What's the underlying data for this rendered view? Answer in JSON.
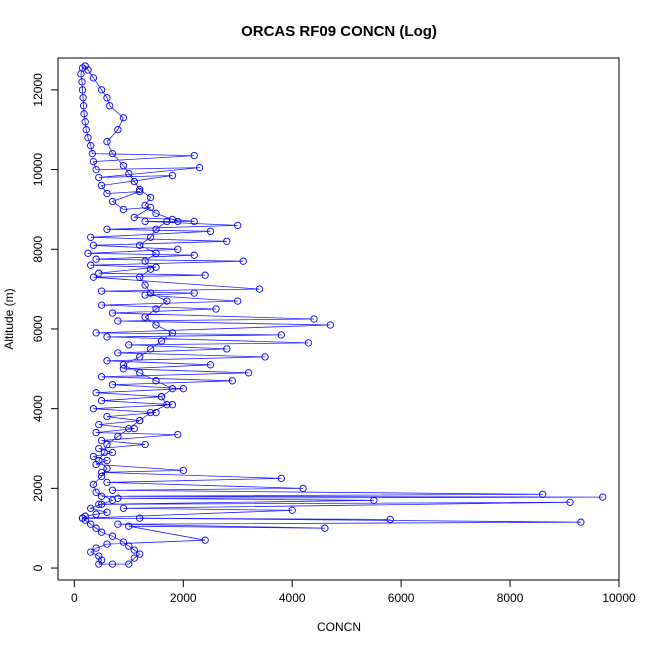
{
  "chart_data": {
    "type": "scatter",
    "title": "ORCAS RF09 CONCN (Log)",
    "xlabel": "CONCN",
    "ylabel": "Altitude (m)",
    "xlim": [
      -300,
      10000
    ],
    "ylim": [
      -300,
      12800
    ],
    "xticks": [
      0,
      2000,
      4000,
      6000,
      8000,
      10000
    ],
    "yticks": [
      0,
      2000,
      4000,
      6000,
      8000,
      10000,
      12000
    ],
    "grid": false,
    "legend": "none",
    "connected": true,
    "marker": "open-circle",
    "colors": {
      "points": "#0000ff",
      "line": "#2020ff"
    },
    "series": [
      {
        "points": [
          [
            200,
            12600
          ],
          [
            150,
            12550
          ],
          [
            120,
            12400
          ],
          [
            140,
            12200
          ],
          [
            150,
            12000
          ],
          [
            160,
            11800
          ],
          [
            170,
            11600
          ],
          [
            180,
            11400
          ],
          [
            200,
            11200
          ],
          [
            220,
            11000
          ],
          [
            250,
            10800
          ],
          [
            300,
            10600
          ],
          [
            330,
            10400
          ],
          [
            2200,
            10350
          ],
          [
            350,
            10200
          ],
          [
            400,
            10000
          ],
          [
            2300,
            10050
          ],
          [
            450,
            9800
          ],
          [
            1800,
            9850
          ],
          [
            500,
            9600
          ],
          [
            600,
            9400
          ],
          [
            1200,
            9450
          ],
          [
            700,
            9200
          ],
          [
            900,
            9000
          ],
          [
            1400,
            9050
          ],
          [
            1100,
            8800
          ],
          [
            1800,
            8750
          ],
          [
            2200,
            8700
          ],
          [
            1300,
            8700
          ],
          [
            3000,
            8600
          ],
          [
            600,
            8500
          ],
          [
            2500,
            8450
          ],
          [
            300,
            8300
          ],
          [
            2800,
            8200
          ],
          [
            350,
            8100
          ],
          [
            1900,
            8000
          ],
          [
            250,
            7900
          ],
          [
            2200,
            7850
          ],
          [
            400,
            7750
          ],
          [
            3100,
            7700
          ],
          [
            300,
            7600
          ],
          [
            1500,
            7550
          ],
          [
            450,
            7400
          ],
          [
            2400,
            7350
          ],
          [
            350,
            7300
          ],
          [
            3400,
            7000
          ],
          [
            500,
            6950
          ],
          [
            2200,
            6900
          ],
          [
            1300,
            6850
          ],
          [
            3000,
            6700
          ],
          [
            500,
            6600
          ],
          [
            2600,
            6500
          ],
          [
            700,
            6400
          ],
          [
            4400,
            6250
          ],
          [
            800,
            6200
          ],
          [
            4700,
            6100
          ],
          [
            400,
            5900
          ],
          [
            3800,
            5850
          ],
          [
            600,
            5800
          ],
          [
            4300,
            5650
          ],
          [
            1000,
            5600
          ],
          [
            2800,
            5500
          ],
          [
            800,
            5400
          ],
          [
            3500,
            5300
          ],
          [
            600,
            5200
          ],
          [
            2500,
            5100
          ],
          [
            900,
            5000
          ],
          [
            3200,
            4900
          ],
          [
            500,
            4800
          ],
          [
            2900,
            4700
          ],
          [
            700,
            4600
          ],
          [
            2000,
            4500
          ],
          [
            400,
            4400
          ],
          [
            1600,
            4300
          ],
          [
            500,
            4200
          ],
          [
            1800,
            4100
          ],
          [
            350,
            4000
          ],
          [
            1500,
            3900
          ],
          [
            600,
            3800
          ],
          [
            1200,
            3700
          ],
          [
            450,
            3600
          ],
          [
            1100,
            3500
          ],
          [
            400,
            3400
          ],
          [
            1900,
            3350
          ],
          [
            500,
            3200
          ],
          [
            1300,
            3100
          ],
          [
            450,
            3000
          ],
          [
            700,
            2900
          ],
          [
            350,
            2800
          ],
          [
            600,
            2700
          ],
          [
            400,
            2600
          ],
          [
            2000,
            2450
          ],
          [
            500,
            2400
          ],
          [
            3800,
            2250
          ],
          [
            600,
            2150
          ],
          [
            4200,
            2000
          ],
          [
            700,
            1950
          ],
          [
            8600,
            1850
          ],
          [
            500,
            1800
          ],
          [
            9700,
            1780
          ],
          [
            800,
            1750
          ],
          [
            5500,
            1700
          ],
          [
            450,
            1600
          ],
          [
            9100,
            1650
          ],
          [
            900,
            1500
          ],
          [
            4000,
            1450
          ],
          [
            150,
            1250
          ],
          [
            5800,
            1220
          ],
          [
            1200,
            1250
          ],
          [
            9300,
            1150
          ],
          [
            800,
            1100
          ],
          [
            4600,
            1000
          ],
          [
            1000,
            1050
          ],
          [
            2400,
            700
          ],
          [
            600,
            600
          ],
          [
            400,
            500
          ],
          [
            300,
            400
          ],
          [
            450,
            300
          ],
          [
            500,
            200
          ],
          [
            450,
            100
          ],
          [
            700,
            100
          ],
          [
            1000,
            100
          ],
          [
            1100,
            250
          ],
          [
            1200,
            350
          ],
          [
            1100,
            450
          ],
          [
            1000,
            550
          ],
          [
            900,
            650
          ],
          [
            700,
            800
          ],
          [
            500,
            900
          ],
          [
            400,
            1000
          ],
          [
            300,
            1100
          ],
          [
            200,
            1200
          ],
          [
            150,
            1250
          ],
          [
            200,
            1300
          ],
          [
            400,
            1350
          ],
          [
            600,
            1400
          ],
          [
            300,
            1500
          ],
          [
            500,
            1600
          ],
          [
            700,
            1700
          ],
          [
            400,
            1900
          ],
          [
            350,
            2100
          ],
          [
            500,
            2300
          ],
          [
            600,
            2500
          ],
          [
            450,
            2700
          ],
          [
            550,
            2900
          ],
          [
            600,
            3100
          ],
          [
            800,
            3300
          ],
          [
            1000,
            3500
          ],
          [
            1200,
            3700
          ],
          [
            1400,
            3900
          ],
          [
            1700,
            4100
          ],
          [
            1600,
            4300
          ],
          [
            1800,
            4500
          ],
          [
            1500,
            4700
          ],
          [
            1200,
            4900
          ],
          [
            900,
            5100
          ],
          [
            1200,
            5300
          ],
          [
            1400,
            5500
          ],
          [
            1600,
            5700
          ],
          [
            1800,
            5900
          ],
          [
            1500,
            6100
          ],
          [
            1300,
            6300
          ],
          [
            1500,
            6500
          ],
          [
            1700,
            6700
          ],
          [
            1400,
            6900
          ],
          [
            1300,
            7100
          ],
          [
            1200,
            7300
          ],
          [
            1400,
            7500
          ],
          [
            1300,
            7700
          ],
          [
            1500,
            7900
          ],
          [
            1200,
            8100
          ],
          [
            1400,
            8300
          ],
          [
            1500,
            8500
          ],
          [
            1700,
            8700
          ],
          [
            1900,
            8700
          ],
          [
            1500,
            8900
          ],
          [
            1300,
            9100
          ],
          [
            1400,
            9300
          ],
          [
            1200,
            9500
          ],
          [
            1100,
            9700
          ],
          [
            1000,
            9900
          ],
          [
            900,
            10100
          ],
          [
            700,
            10400
          ],
          [
            600,
            10700
          ],
          [
            800,
            11000
          ],
          [
            900,
            11300
          ],
          [
            650,
            11600
          ],
          [
            600,
            11800
          ],
          [
            500,
            12000
          ],
          [
            350,
            12300
          ],
          [
            250,
            12500
          ],
          [
            200,
            12600
          ]
        ]
      }
    ]
  }
}
